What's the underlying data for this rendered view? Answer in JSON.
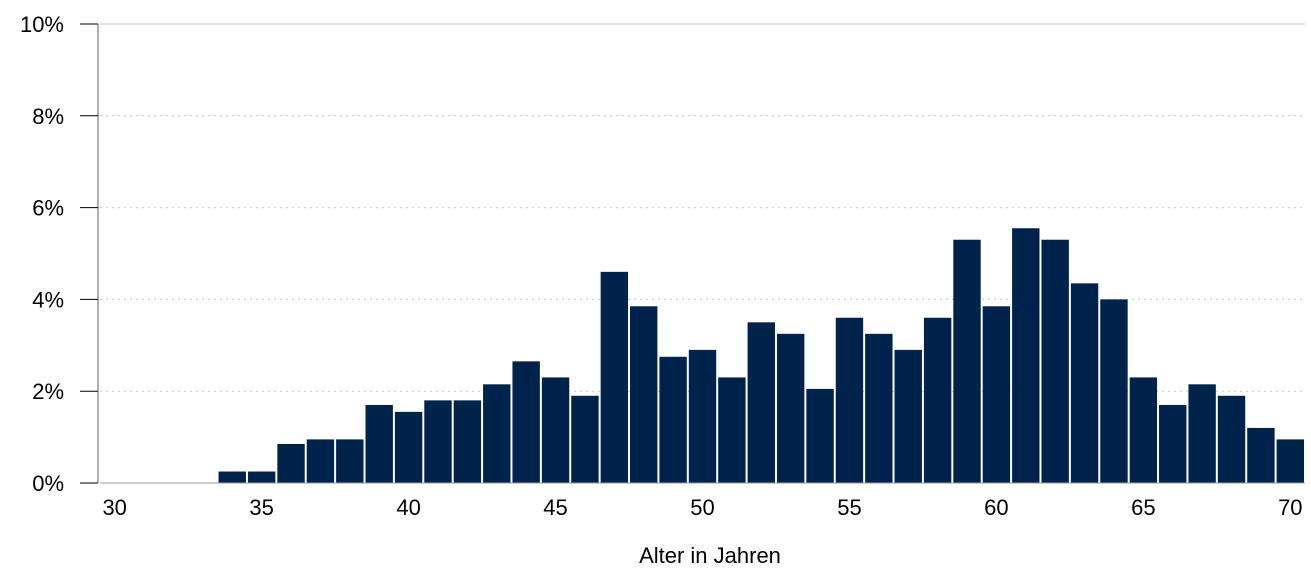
{
  "chart_data": {
    "type": "bar",
    "title": "",
    "xlabel": "Alter in Jahren",
    "ylabel": "",
    "x": [
      30,
      31,
      32,
      33,
      34,
      35,
      36,
      37,
      38,
      39,
      40,
      41,
      42,
      43,
      44,
      45,
      46,
      47,
      48,
      49,
      50,
      51,
      52,
      53,
      54,
      55,
      56,
      57,
      58,
      59,
      60,
      61,
      62,
      63,
      64,
      65,
      66,
      67,
      68,
      69,
      70
    ],
    "values": [
      0,
      0,
      0,
      0,
      0.25,
      0.25,
      0.85,
      0.95,
      0.95,
      1.7,
      1.55,
      1.8,
      1.8,
      2.15,
      2.65,
      2.3,
      1.9,
      4.6,
      3.85,
      2.75,
      2.9,
      2.3,
      3.5,
      3.25,
      2.05,
      3.6,
      3.25,
      2.9,
      3.6,
      5.3,
      3.85,
      5.55,
      5.3,
      4.35,
      4.0,
      2.3,
      1.7,
      2.15,
      1.9,
      1.2,
      0.95
    ],
    "xlim": [
      29.5,
      70.5
    ],
    "ylim": [
      0,
      10
    ],
    "x_ticks": [
      "30",
      "35",
      "40",
      "45",
      "50",
      "55",
      "60",
      "65",
      "70"
    ],
    "y_ticks": [
      "0%",
      "2%",
      "4%",
      "6%",
      "8%",
      "10%"
    ],
    "grid": "horizontal dotted",
    "bar_color": "#00234b",
    "gridline_color": "#c8c8c8"
  }
}
